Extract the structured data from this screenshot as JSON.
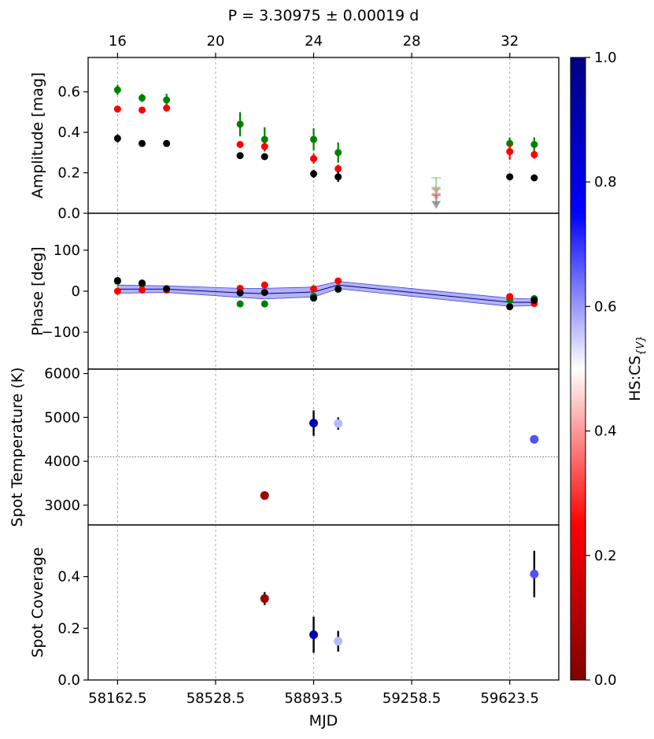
{
  "chart_data": {
    "type": "scatter",
    "title": "P = 3.30975 ± 0.00019 d",
    "xlabel": "MJD",
    "top_axis": {
      "ticks": [
        16,
        20,
        24,
        28,
        32
      ],
      "labels": [
        "16",
        "20",
        "24",
        "28",
        "32"
      ]
    },
    "x_ticks": [
      58162.5,
      58528.5,
      58893.5,
      59258.5,
      59623.5
    ],
    "x_tick_labels": [
      "58162.5",
      "58528.5",
      "58893.5",
      "59258.5",
      "59623.5"
    ],
    "colorbar": {
      "label": "HS:CS",
      "label_sub": "{V}",
      "range": [
        0.0,
        1.0
      ],
      "ticks": [
        0.0,
        0.2,
        0.4,
        0.6,
        0.8,
        1.0
      ],
      "tick_labels": [
        "0.0",
        "0.2",
        "0.4",
        "0.6",
        "0.8",
        "1.0"
      ],
      "colors": [
        "#800000",
        "#ff0000",
        "#ffffff",
        "#0000ff",
        "#000080"
      ]
    },
    "panels": [
      {
        "id": "amplitude",
        "ylabel": "Amplitude [mag]",
        "ylim": [
          0.0,
          0.77
        ],
        "yticks": [
          0.0,
          0.2,
          0.4,
          0.6
        ],
        "ytick_labels": [
          "0.0",
          "0.2",
          "0.4",
          "0.6"
        ],
        "series": [
          {
            "name": "green",
            "color": "#008000",
            "x": [
              16,
              17,
              18,
              21,
              22,
              24,
              25,
              32,
              33
            ],
            "y": [
              0.61,
              0.57,
              0.56,
              0.44,
              0.365,
              0.365,
              0.3,
              0.345,
              0.34
            ],
            "err": [
              0.025,
              0.02,
              0.03,
              0.06,
              0.06,
              0.055,
              0.05,
              0.03,
              0.035
            ]
          },
          {
            "name": "red",
            "color": "#ff0000",
            "x": [
              16,
              17,
              18,
              21,
              22,
              24,
              25,
              32,
              33
            ],
            "y": [
              0.515,
              0.51,
              0.52,
              0.34,
              0.33,
              0.27,
              0.22,
              0.305,
              0.29
            ],
            "err": [
              0.01,
              0.01,
              0.01,
              0.01,
              0.02,
              0.025,
              0.02,
              0.04,
              0.02
            ]
          },
          {
            "name": "black",
            "color": "#000000",
            "x": [
              16,
              17,
              18,
              21,
              22,
              24,
              25,
              32,
              33
            ],
            "y": [
              0.37,
              0.345,
              0.345,
              0.285,
              0.28,
              0.195,
              0.18,
              0.18,
              0.175
            ],
            "err": [
              0.02,
              0.01,
              0.01,
              0.01,
              0.01,
              0.02,
              0.025,
              0.015,
              0.01
            ]
          }
        ],
        "upper_limits": [
          {
            "x": 29,
            "y": 0.115,
            "top": 0.175,
            "color": "#80c080"
          },
          {
            "x": 29,
            "y": 0.085,
            "top": 0.12,
            "color": "#ff8080"
          },
          {
            "x": 29,
            "y": 0.045,
            "top": 0.09,
            "color": "#808080"
          }
        ]
      },
      {
        "id": "phase",
        "ylabel": "Phase [deg]",
        "ylim": [
          -190,
          190
        ],
        "yticks": [
          -100,
          0,
          100
        ],
        "ytick_labels": [
          "−100",
          "0",
          "100"
        ],
        "band": {
          "x": [
            16,
            18,
            21,
            22,
            24,
            25,
            32,
            33
          ],
          "mid": [
            5,
            5,
            -4,
            -6,
            -2,
            15,
            -27,
            -27
          ],
          "lo": [
            -5,
            -3,
            -15,
            -19,
            -14,
            6,
            -37,
            -35
          ],
          "hi": [
            15,
            13,
            7,
            7,
            10,
            24,
            -17,
            -19
          ]
        },
        "series": [
          {
            "name": "green",
            "color": "#008000",
            "x": [
              16,
              17,
              18,
              21,
              22,
              24,
              25,
              32,
              33
            ],
            "y": [
              24,
              17,
              6,
              -31,
              -31,
              -12,
              5,
              -22,
              -18
            ],
            "err": [
              0,
              0,
              0,
              0,
              0,
              0,
              0,
              0,
              0
            ]
          },
          {
            "name": "red",
            "color": "#ff0000",
            "x": [
              16,
              17,
              18,
              21,
              22,
              24,
              25,
              32,
              33
            ],
            "y": [
              0,
              3,
              3,
              7,
              15,
              6,
              25,
              -13,
              -30
            ],
            "err": [
              0,
              0,
              0,
              0,
              0,
              0,
              0,
              0,
              0
            ]
          },
          {
            "name": "black",
            "color": "#000000",
            "x": [
              16,
              17,
              18,
              21,
              22,
              24,
              25,
              32,
              33
            ],
            "y": [
              26,
              20,
              6,
              -4,
              -3,
              -17,
              5,
              -38,
              -22
            ],
            "err": [
              0,
              0,
              0,
              0,
              0,
              0,
              0,
              0,
              0
            ]
          }
        ]
      },
      {
        "id": "temperature",
        "ylabel": "Spot Temperature (K)",
        "ylim": [
          2550,
          6100
        ],
        "yticks": [
          3000,
          4000,
          5000,
          6000
        ],
        "ytick_labels": [
          "3000",
          "4000",
          "5000",
          "6000"
        ],
        "hline": 4100,
        "points": [
          {
            "x": 22,
            "y": 3220,
            "err": 90,
            "c": 0.06
          },
          {
            "x": 24,
            "y": 4870,
            "err": 290,
            "c": 0.9
          },
          {
            "x": 25,
            "y": 4860,
            "err": 140,
            "c": 0.57
          },
          {
            "x": 33,
            "y": 4500,
            "err": 0,
            "c": 0.67
          }
        ]
      },
      {
        "id": "coverage",
        "ylabel": "Spot Coverage",
        "ylim": [
          0.0,
          0.6
        ],
        "yticks": [
          0.0,
          0.2,
          0.4
        ],
        "ytick_labels": [
          "0.0",
          "0.2",
          "0.4"
        ],
        "points": [
          {
            "x": 22,
            "y": 0.315,
            "err": 0.025,
            "c": 0.06
          },
          {
            "x": 24,
            "y": 0.175,
            "err": 0.07,
            "c": 0.9
          },
          {
            "x": 25,
            "y": 0.15,
            "err": 0.04,
            "c": 0.57
          },
          {
            "x": 33,
            "y": 0.41,
            "err": 0.09,
            "c": 0.67
          }
        ]
      }
    ]
  }
}
